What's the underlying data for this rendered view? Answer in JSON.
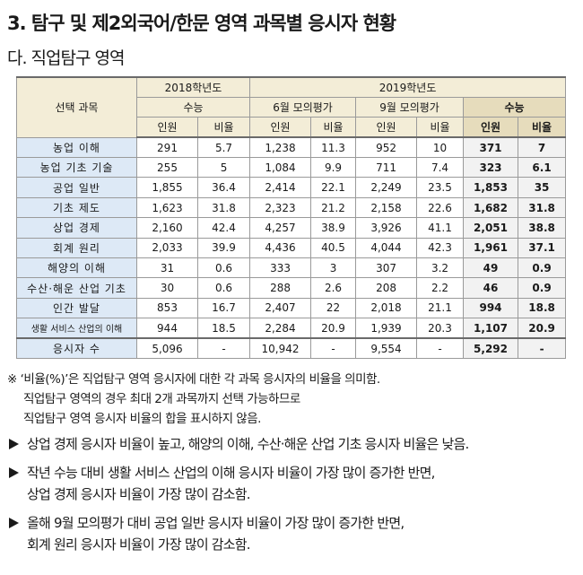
{
  "title": "3. 탐구 및 제2외국어/한문 영역 과목별 응시자 현황",
  "subtitle": "다. 직업탐구 영역",
  "table": {
    "subject_header": "선택 과목",
    "year_2018": "2018학년도",
    "year_2019": "2019학년도",
    "exam_suneung": "수능",
    "exam_june": "6월 모의평가",
    "exam_sept": "9월 모의평가",
    "col_count": "인원",
    "col_ratio": "비율",
    "rows": [
      {
        "subject": "농업 이해",
        "c18": "291",
        "r18": "5.7",
        "c6": "1,238",
        "r6": "11.3",
        "c9": "952",
        "r9": "10",
        "cs": "371",
        "rs": "7"
      },
      {
        "subject": "농업 기초 기술",
        "c18": "255",
        "r18": "5",
        "c6": "1,084",
        "r6": "9.9",
        "c9": "711",
        "r9": "7.4",
        "cs": "323",
        "rs": "6.1"
      },
      {
        "subject": "공업 일반",
        "c18": "1,855",
        "r18": "36.4",
        "c6": "2,414",
        "r6": "22.1",
        "c9": "2,249",
        "r9": "23.5",
        "cs": "1,853",
        "rs": "35"
      },
      {
        "subject": "기초 제도",
        "c18": "1,623",
        "r18": "31.8",
        "c6": "2,323",
        "r6": "21.2",
        "c9": "2,158",
        "r9": "22.6",
        "cs": "1,682",
        "rs": "31.8"
      },
      {
        "subject": "상업 경제",
        "c18": "2,160",
        "r18": "42.4",
        "c6": "4,257",
        "r6": "38.9",
        "c9": "3,926",
        "r9": "41.1",
        "cs": "2,051",
        "rs": "38.8"
      },
      {
        "subject": "회계 원리",
        "c18": "2,033",
        "r18": "39.9",
        "c6": "4,436",
        "r6": "40.5",
        "c9": "4,044",
        "r9": "42.3",
        "cs": "1,961",
        "rs": "37.1"
      },
      {
        "subject": "해양의 이해",
        "c18": "31",
        "r18": "0.6",
        "c6": "333",
        "r6": "3",
        "c9": "307",
        "r9": "3.2",
        "cs": "49",
        "rs": "0.9"
      },
      {
        "subject": "수산·해운 산업 기초",
        "c18": "30",
        "r18": "0.6",
        "c6": "288",
        "r6": "2.6",
        "c9": "208",
        "r9": "2.2",
        "cs": "46",
        "rs": "0.9"
      },
      {
        "subject": "인간 발달",
        "c18": "853",
        "r18": "16.7",
        "c6": "2,407",
        "r6": "22",
        "c9": "2,018",
        "r9": "21.1",
        "cs": "994",
        "rs": "18.8"
      },
      {
        "subject": "생활 서비스 산업의 이해",
        "c18": "944",
        "r18": "18.5",
        "c6": "2,284",
        "r6": "20.9",
        "c9": "1,939",
        "r9": "20.3",
        "cs": "1,107",
        "rs": "20.9"
      }
    ],
    "total": {
      "subject": "응시자 수",
      "c18": "5,096",
      "r18": "-",
      "c6": "10,942",
      "r6": "-",
      "c9": "9,554",
      "r9": "-",
      "cs": "5,292",
      "rs": "-"
    }
  },
  "note": {
    "line1": "※ ‘비율(%)’은 직업탐구 영역 응시자에 대한 각 과목 응시자의 비율을 의미함.",
    "line2": "직업탐구 영역의 경우 최대 2개 과목까지 선택 가능하므로",
    "line3": "직업탐구 영역 응시자 비율의 합을 표시하지 않음."
  },
  "bullets": [
    {
      "l1": "상업 경제 응시자 비율이 높고, 해양의 이해, 수산·해운 산업 기초 응시자 비율은 낮음.",
      "l2": ""
    },
    {
      "l1": "작년 수능 대비 생활 서비스 산업의 이해 응시자 비율이 가장 많이 증가한 반면,",
      "l2": "상업 경제 응시자 비율이 가장 많이 감소함."
    },
    {
      "l1": "올해 9월 모의평가 대비 공업 일반 응시자 비율이 가장 많이 증가한 반면,",
      "l2": "회계 원리 응시자 비율이 가장 많이 감소함."
    }
  ]
}
